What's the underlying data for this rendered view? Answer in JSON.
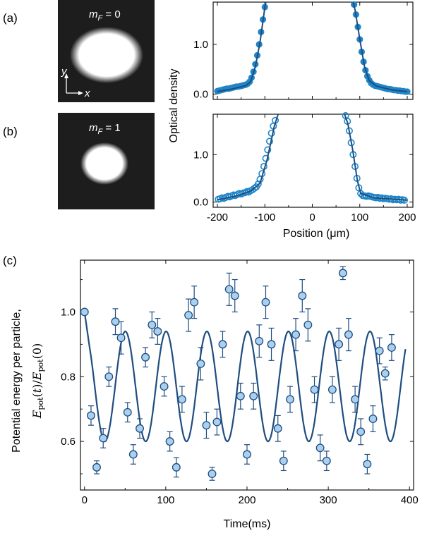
{
  "colors": {
    "fit": "#1f4d80",
    "marker_a": "#1e86c8",
    "marker_b": "#1e86c8",
    "marker_c_fill": "#a9d0ee",
    "marker_c_stroke": "#1f4d80",
    "image_bg": "#1d1d1d",
    "cloud": "#ffffff"
  },
  "panels": {
    "a": {
      "tag": "(a)",
      "image_label_var": "m",
      "image_label_sub": "F",
      "image_label_value": " = 0",
      "axis_y": "y",
      "axis_x": "x"
    },
    "b": {
      "tag": "(b)",
      "image_label_var": "m",
      "image_label_sub": "F",
      "image_label_value": " = 1"
    },
    "c": {
      "tag": "(c)"
    }
  },
  "chart_data": [
    {
      "type": "scatter",
      "panel": "a",
      "marker": "filled-circle",
      "ylabel": "Optical density",
      "xlim": [
        -200,
        200
      ],
      "ylim": [
        -0.05,
        1.85
      ],
      "yticks": [
        0.0,
        1.0
      ],
      "ytick_labels": [
        "0.0",
        "1.0"
      ],
      "grid": false,
      "series": [
        {
          "points": [
            [
              -200,
              0.06
            ],
            [
              -196,
              0.07
            ],
            [
              -192,
              0.08
            ],
            [
              -188,
              0.09
            ],
            [
              -184,
              0.1
            ],
            [
              -180,
              0.11
            ],
            [
              -176,
              0.11
            ],
            [
              -172,
              0.12
            ],
            [
              -168,
              0.13
            ],
            [
              -164,
              0.14
            ],
            [
              -160,
              0.15
            ],
            [
              -156,
              0.15
            ],
            [
              -152,
              0.16
            ],
            [
              -148,
              0.17
            ],
            [
              -144,
              0.18
            ],
            [
              -140,
              0.19
            ],
            [
              -136,
              0.21
            ],
            [
              -132,
              0.25
            ],
            [
              -128,
              0.33
            ],
            [
              -124,
              0.45
            ],
            [
              -120,
              0.6
            ],
            [
              -116,
              0.78
            ],
            [
              -112,
              1.0
            ],
            [
              -108,
              1.25
            ],
            [
              -104,
              1.5
            ],
            [
              -100,
              1.75
            ],
            [
              88,
              1.8
            ],
            [
              92,
              1.6
            ],
            [
              96,
              1.35
            ],
            [
              100,
              1.1
            ],
            [
              104,
              0.85
            ],
            [
              108,
              0.65
            ],
            [
              112,
              0.48
            ],
            [
              116,
              0.36
            ],
            [
              120,
              0.28
            ],
            [
              124,
              0.22
            ],
            [
              128,
              0.19
            ],
            [
              132,
              0.17
            ],
            [
              136,
              0.16
            ],
            [
              140,
              0.15
            ],
            [
              144,
              0.14
            ],
            [
              148,
              0.13
            ],
            [
              152,
              0.12
            ],
            [
              156,
              0.11
            ],
            [
              160,
              0.1
            ],
            [
              164,
              0.1
            ],
            [
              168,
              0.09
            ],
            [
              172,
              0.08
            ],
            [
              176,
              0.08
            ],
            [
              180,
              0.07
            ],
            [
              184,
              0.07
            ],
            [
              188,
              0.06
            ],
            [
              192,
              0.06
            ],
            [
              196,
              0.05
            ],
            [
              200,
              0.05
            ]
          ]
        }
      ],
      "fit": [
        [
          [
            -200,
            0.05
          ],
          [
            -170,
            0.1
          ],
          [
            -140,
            0.17
          ],
          [
            -130,
            0.25
          ],
          [
            -120,
            0.55
          ],
          [
            -110,
            1.05
          ],
          [
            -100,
            1.75
          ],
          [
            -98,
            1.85
          ]
        ],
        [
          [
            86,
            1.85
          ],
          [
            90,
            1.7
          ],
          [
            100,
            1.1
          ],
          [
            110,
            0.55
          ],
          [
            120,
            0.27
          ],
          [
            135,
            0.16
          ],
          [
            170,
            0.08
          ],
          [
            200,
            0.05
          ]
        ]
      ]
    },
    {
      "type": "scatter",
      "panel": "b",
      "marker": "open-circle",
      "ylabel": "Optical density",
      "xlabel": "Position (μm)",
      "xlim": [
        -200,
        200
      ],
      "ylim": [
        -0.05,
        1.85
      ],
      "xticks": [
        -200,
        -100,
        0,
        100,
        200
      ],
      "xtick_labels": [
        "-200",
        "-100",
        "0",
        "100",
        "200"
      ],
      "yticks": [
        0.0,
        1.0
      ],
      "ytick_labels": [
        "0.0",
        "1.0"
      ],
      "grid": false,
      "series": [
        {
          "points": [
            [
              -198,
              0.06
            ],
            [
              -194,
              0.07
            ],
            [
              -190,
              0.09
            ],
            [
              -186,
              0.08
            ],
            [
              -182,
              0.1
            ],
            [
              -178,
              0.12
            ],
            [
              -174,
              0.11
            ],
            [
              -170,
              0.13
            ],
            [
              -166,
              0.15
            ],
            [
              -162,
              0.14
            ],
            [
              -158,
              0.16
            ],
            [
              -154,
              0.18
            ],
            [
              -150,
              0.17
            ],
            [
              -146,
              0.19
            ],
            [
              -142,
              0.2
            ],
            [
              -138,
              0.22
            ],
            [
              -134,
              0.21
            ],
            [
              -130,
              0.24
            ],
            [
              -126,
              0.26
            ],
            [
              -122,
              0.29
            ],
            [
              -118,
              0.32
            ],
            [
              -114,
              0.38
            ],
            [
              -110,
              0.48
            ],
            [
              -106,
              0.6
            ],
            [
              -102,
              0.75
            ],
            [
              -98,
              0.92
            ],
            [
              -94,
              1.1
            ],
            [
              -90,
              1.28
            ],
            [
              -86,
              1.45
            ],
            [
              -82,
              1.6
            ],
            [
              -78,
              1.72
            ],
            [
              70,
              1.82
            ],
            [
              74,
              1.7
            ],
            [
              78,
              1.5
            ],
            [
              82,
              1.25
            ],
            [
              86,
              1.0
            ],
            [
              90,
              0.75
            ],
            [
              94,
              0.5
            ],
            [
              98,
              0.3
            ],
            [
              102,
              0.18
            ],
            [
              106,
              0.14
            ],
            [
              110,
              0.13
            ],
            [
              114,
              0.12
            ],
            [
              118,
              0.13
            ],
            [
              122,
              0.12
            ],
            [
              126,
              0.11
            ],
            [
              130,
              0.1
            ],
            [
              134,
              0.09
            ],
            [
              138,
              0.1
            ],
            [
              142,
              0.08
            ],
            [
              146,
              0.09
            ],
            [
              150,
              0.07
            ],
            [
              154,
              0.08
            ],
            [
              158,
              0.07
            ],
            [
              162,
              0.06
            ],
            [
              166,
              0.07
            ],
            [
              170,
              0.05
            ],
            [
              174,
              0.06
            ],
            [
              178,
              0.05
            ],
            [
              182,
              0.06
            ],
            [
              186,
              0.04
            ],
            [
              190,
              0.05
            ],
            [
              194,
              0.04
            ]
          ]
        }
      ],
      "fit": [
        [
          [
            -200,
            0.05
          ],
          [
            -160,
            0.13
          ],
          [
            -130,
            0.23
          ],
          [
            -110,
            0.4
          ],
          [
            -95,
            0.9
          ],
          [
            -80,
            1.6
          ],
          [
            -72,
            1.85
          ]
        ],
        [
          [
            68,
            1.85
          ],
          [
            75,
            1.65
          ],
          [
            85,
            1.1
          ],
          [
            95,
            0.45
          ],
          [
            102,
            0.18
          ],
          [
            130,
            0.09
          ],
          [
            200,
            0.04
          ]
        ]
      ]
    },
    {
      "type": "scatter",
      "panel": "c",
      "marker": "filled-circle-errorbar",
      "ylabel": "Potential energy per particle,",
      "ylabel_math": "E_pot(t)/E_pot(0)",
      "xlabel": "Time(ms)",
      "xlim": [
        -5,
        405
      ],
      "ylim": [
        0.45,
        1.16
      ],
      "xticks": [
        0,
        100,
        200,
        300,
        400
      ],
      "xtick_labels": [
        "0",
        "100",
        "200",
        "300",
        "400"
      ],
      "yticks": [
        0.6,
        0.8,
        1.0
      ],
      "ytick_labels": [
        "0.6",
        "0.8",
        "1.0"
      ],
      "grid": false,
      "series": [
        {
          "points": [
            [
              0,
              1.0,
              0.0
            ],
            [
              8,
              0.68,
              0.03
            ],
            [
              15,
              0.52,
              0.02
            ],
            [
              23,
              0.61,
              0.03
            ],
            [
              30,
              0.8,
              0.03
            ],
            [
              38,
              0.97,
              0.04
            ],
            [
              45,
              0.92,
              0.05
            ],
            [
              53,
              0.69,
              0.03
            ],
            [
              60,
              0.56,
              0.03
            ],
            [
              68,
              0.64,
              0.03
            ],
            [
              75,
              0.86,
              0.03
            ],
            [
              83,
              0.96,
              0.04
            ],
            [
              90,
              0.94,
              0.04
            ],
            [
              98,
              0.77,
              0.03
            ],
            [
              105,
              0.6,
              0.03
            ],
            [
              113,
              0.52,
              0.03
            ],
            [
              120,
              0.73,
              0.04
            ],
            [
              128,
              0.99,
              0.05
            ],
            [
              135,
              1.03,
              0.05
            ],
            [
              143,
              0.84,
              0.05
            ],
            [
              150,
              0.65,
              0.04
            ],
            [
              157,
              0.5,
              0.02
            ],
            [
              163,
              0.66,
              0.04
            ],
            [
              170,
              0.9,
              0.04
            ],
            [
              178,
              1.07,
              0.05
            ],
            [
              185,
              1.05,
              0.05
            ],
            [
              192,
              0.74,
              0.04
            ],
            [
              200,
              0.56,
              0.03
            ],
            [
              208,
              0.74,
              0.04
            ],
            [
              215,
              0.91,
              0.05
            ],
            [
              223,
              1.03,
              0.05
            ],
            [
              230,
              0.9,
              0.05
            ],
            [
              238,
              0.64,
              0.04
            ],
            [
              245,
              0.54,
              0.03
            ],
            [
              253,
              0.73,
              0.04
            ],
            [
              260,
              0.93,
              0.05
            ],
            [
              268,
              1.05,
              0.05
            ],
            [
              275,
              0.96,
              0.05
            ],
            [
              283,
              0.76,
              0.04
            ],
            [
              290,
              0.58,
              0.04
            ],
            [
              298,
              0.54,
              0.03
            ],
            [
              305,
              0.76,
              0.04
            ],
            [
              313,
              0.9,
              0.05
            ],
            [
              318,
              1.12,
              0.02
            ],
            [
              325,
              0.93,
              0.05
            ],
            [
              333,
              0.73,
              0.04
            ],
            [
              340,
              0.63,
              0.04
            ],
            [
              348,
              0.53,
              0.03
            ],
            [
              355,
              0.67,
              0.04
            ],
            [
              363,
              0.88,
              0.04
            ],
            [
              370,
              0.81,
              0.02
            ],
            [
              378,
              0.89,
              0.04
            ]
          ]
        }
      ],
      "fit_params": {
        "offset": 0.77,
        "amp0": 0.17,
        "amp_growth": 0.0,
        "period_ms": 50.2,
        "phase": 0.0
      }
    }
  ]
}
